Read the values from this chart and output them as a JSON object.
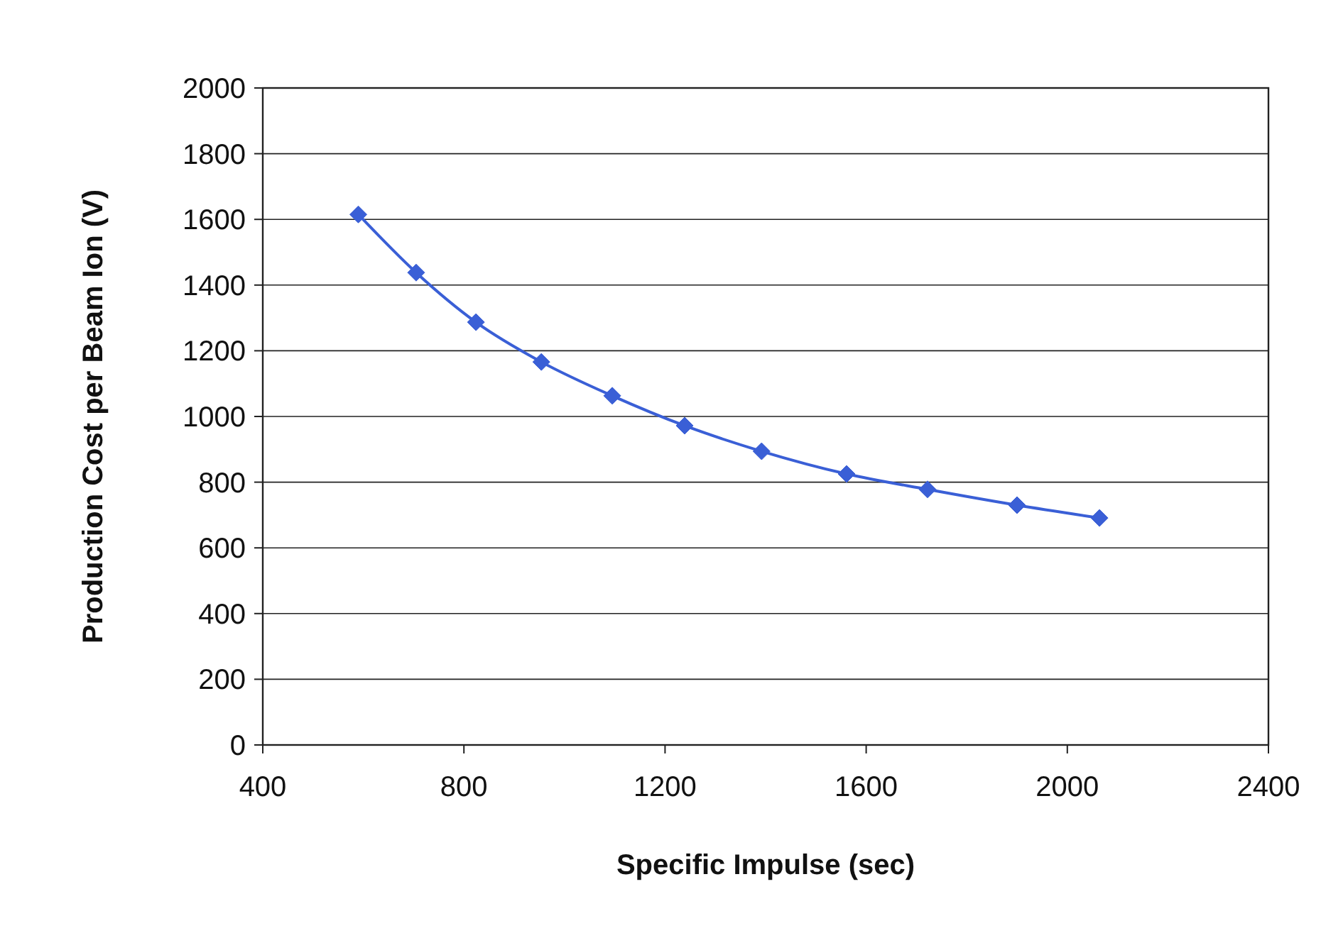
{
  "chart_data": {
    "type": "line",
    "xlabel": "Specific Impulse (sec)",
    "ylabel": "Production Cost per Beam Ion (V)",
    "x": [
      590,
      705,
      824,
      954,
      1095,
      1239,
      1392,
      1561,
      1722,
      1900,
      2064
    ],
    "series": [
      {
        "color": "#3a5fd6",
        "values": [
          1615,
          1438,
          1287,
          1166,
          1063,
          972,
          894,
          825,
          778,
          730,
          691
        ]
      }
    ],
    "xlim": [
      400,
      2400
    ],
    "xticks": [
      400,
      800,
      1200,
      1600,
      2000,
      2400
    ],
    "ylim": [
      0,
      2000
    ],
    "yticks": [
      0,
      200,
      400,
      600,
      800,
      1000,
      1200,
      1400,
      1600,
      1800,
      2000
    ],
    "grid": "y",
    "marker": "diamond",
    "line_style": "solid"
  }
}
